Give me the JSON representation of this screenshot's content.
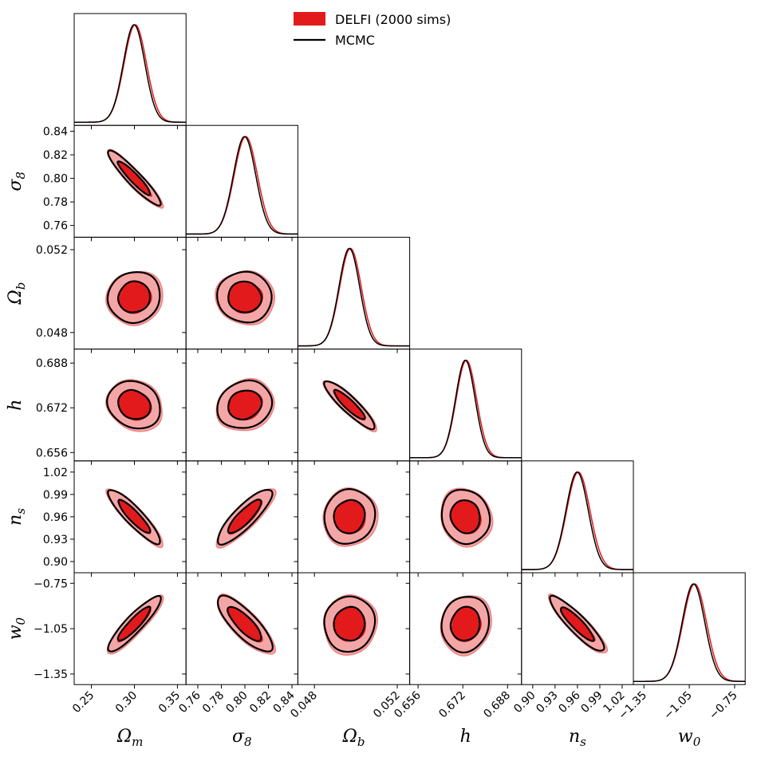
{
  "chart_data": {
    "type": "corner",
    "title": "",
    "legend": {
      "placement": "top-center",
      "entries": [
        {
          "label": "DELFI (2000 sims)",
          "style": "filled",
          "color": "#e31a1c"
        },
        {
          "label": "MCMC",
          "style": "line",
          "color": "#000000"
        }
      ]
    },
    "colors": {
      "delfi_inner": "#e31a1c",
      "delfi_outer": "#f4a6a6",
      "delfi_outer_edge": "#f08080",
      "mcmc": "#000000"
    },
    "parameters": [
      {
        "key": "Om",
        "label": "Ωm",
        "symbol": "Ω",
        "sub": "m",
        "range": [
          0.23,
          0.36
        ],
        "ticks": [
          0.25,
          0.3,
          0.35
        ],
        "tick_labels": [
          "0.25",
          "0.30",
          "0.35"
        ],
        "mean": 0.3,
        "sd": 0.0125
      },
      {
        "key": "s8",
        "label": "σ8",
        "symbol": "σ",
        "sub": "8",
        "range": [
          0.75,
          0.845
        ],
        "ticks": [
          0.76,
          0.78,
          0.8,
          0.82,
          0.84
        ],
        "tick_labels": [
          "0.76",
          "0.78",
          "0.80",
          "0.82",
          "0.84"
        ],
        "mean": 0.8,
        "sd": 0.0095
      },
      {
        "key": "Ob",
        "label": "Ωb",
        "symbol": "Ω",
        "sub": "b",
        "range": [
          0.0472,
          0.0526
        ],
        "ticks": [
          0.048,
          0.052
        ],
        "tick_labels": [
          "0.048",
          "0.052"
        ],
        "mean": 0.0497,
        "sd": 0.0005
      },
      {
        "key": "h",
        "label": "h",
        "symbol": "h",
        "sub": "",
        "range": [
          0.653,
          0.693
        ],
        "ticks": [
          0.656,
          0.672,
          0.688
        ],
        "tick_labels": [
          "0.656",
          "0.672",
          "0.688"
        ],
        "mean": 0.673,
        "sd": 0.0035
      },
      {
        "key": "ns",
        "label": "ns",
        "symbol": "n",
        "sub": "s",
        "range": [
          0.885,
          1.035
        ],
        "ticks": [
          0.9,
          0.93,
          0.96,
          0.99,
          1.02
        ],
        "tick_labels": [
          "0.90",
          "0.93",
          "0.96",
          "0.99",
          "1.02"
        ],
        "mean": 0.96,
        "sd": 0.015
      },
      {
        "key": "w0",
        "label": "w0",
        "symbol": "w",
        "sub": "0",
        "range": [
          -1.42,
          -0.68
        ],
        "ticks": [
          -1.35,
          -1.05,
          -0.75
        ],
        "tick_labels": [
          "−1.35",
          "−1.05",
          "−0.75"
        ],
        "mean": -1.02,
        "sd": 0.075
      }
    ],
    "correlations": [
      [
        1,
        -0.93,
        0.05,
        -0.15,
        -0.9,
        0.9
      ],
      [
        -0.93,
        1,
        -0.05,
        0.15,
        0.85,
        -0.8
      ],
      [
        0.05,
        -0.05,
        1,
        -0.9,
        0.05,
        0.05
      ],
      [
        -0.15,
        0.15,
        -0.9,
        1,
        -0.1,
        0.1
      ],
      [
        -0.9,
        0.85,
        0.05,
        -0.1,
        1,
        -0.9
      ],
      [
        0.9,
        -0.8,
        0.05,
        0.1,
        -0.9,
        1
      ]
    ],
    "contour_levels": [
      "68%",
      "95%"
    ],
    "grid": false
  }
}
